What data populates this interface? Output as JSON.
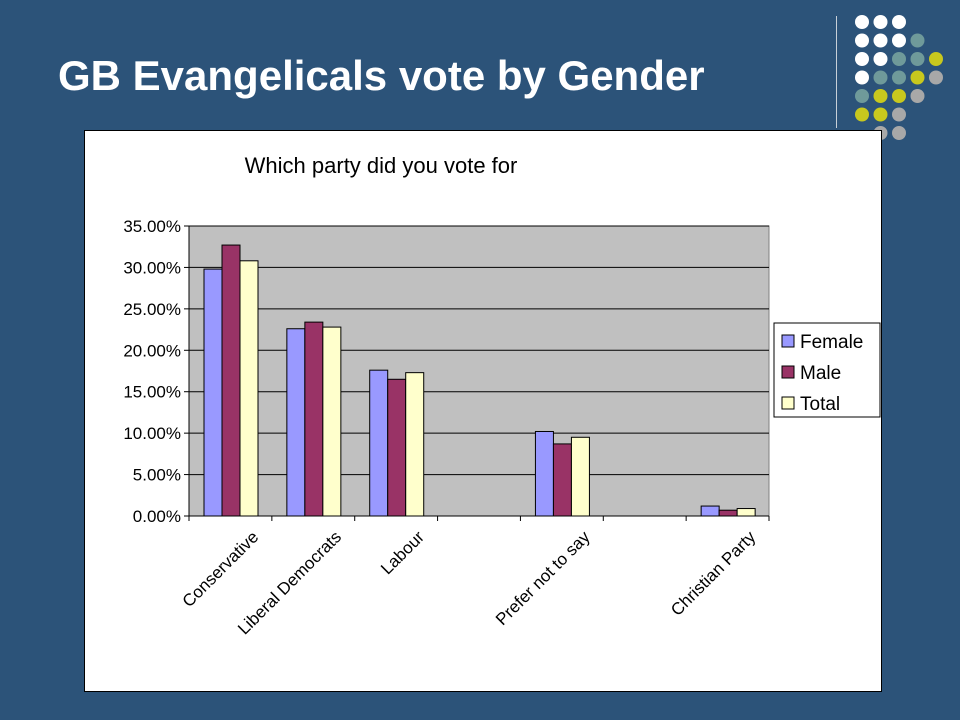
{
  "slide": {
    "title": "GB Evangelicals vote by Gender"
  },
  "decoration": {
    "dot_colors": [
      "#ffffff",
      "#6f9a9a",
      "#c8c81e",
      "#a8a8a8"
    ]
  },
  "chart_data": {
    "type": "bar",
    "title": "Which party did you vote for",
    "categories": [
      "Conservative",
      "Liberal Democrats",
      "Labour",
      "",
      "Prefer not to say",
      "",
      "Christian Party"
    ],
    "series": [
      {
        "name": "Female",
        "color": "#9999ff",
        "values": [
          29.8,
          22.6,
          17.6,
          null,
          10.2,
          null,
          1.2
        ]
      },
      {
        "name": "Male",
        "color": "#993366",
        "values": [
          32.7,
          23.4,
          16.5,
          null,
          8.7,
          null,
          0.7
        ]
      },
      {
        "name": "Total",
        "color": "#ffffcc",
        "values": [
          30.8,
          22.8,
          17.3,
          null,
          9.5,
          null,
          0.9
        ]
      }
    ],
    "ylim": [
      0,
      35
    ],
    "yticks": [
      "0.00%",
      "5.00%",
      "10.00%",
      "15.00%",
      "20.00%",
      "25.00%",
      "30.00%",
      "35.00%"
    ],
    "ytick_values": [
      0,
      5,
      10,
      15,
      20,
      25,
      30,
      35
    ],
    "plot_background": "#c0c0c0",
    "grid": true,
    "legend_position": "right"
  }
}
